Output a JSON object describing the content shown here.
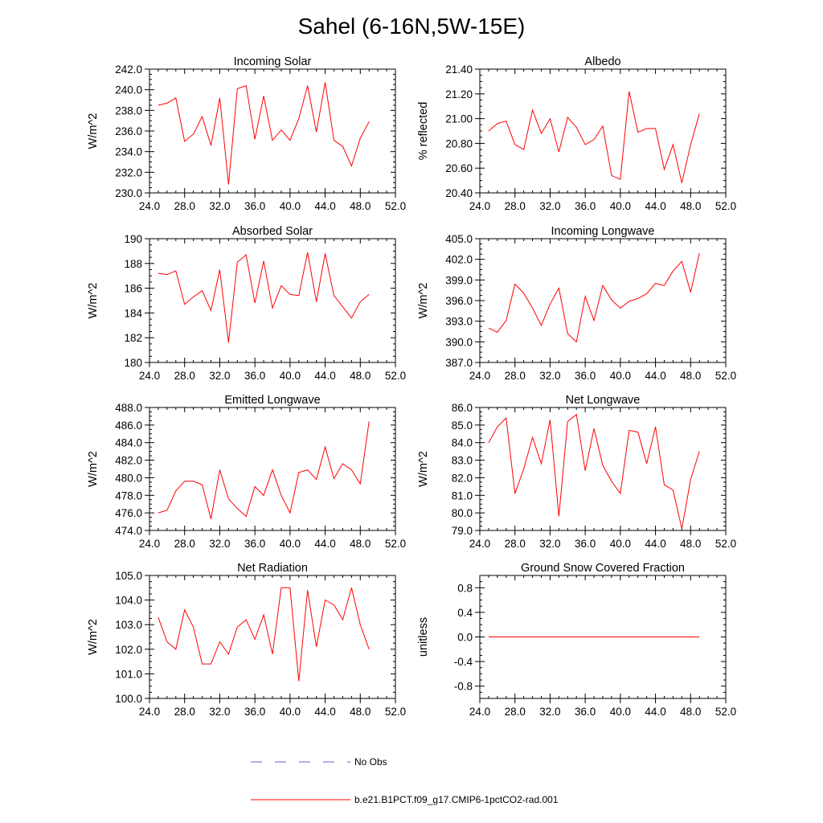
{
  "figure": {
    "title": "Sahel (6-16N,5W-15E)",
    "legend": [
      {
        "label": "No Obs",
        "color": "#5a6ad0",
        "dash": "dashed"
      },
      {
        "label": "b.e21.B1PCT.f09_g17.CMIP6-1pctCO2-rad.001",
        "color": "#ff0000",
        "dash": "solid"
      }
    ]
  },
  "chart_data": [
    {
      "type": "line",
      "title": "Incoming Solar",
      "ylabel": "W/m^2",
      "xlim": [
        24,
        52
      ],
      "ylim": [
        230,
        242
      ],
      "xticks": [
        24,
        28,
        32,
        36,
        40,
        44,
        48,
        52
      ],
      "xticklabels": [
        "24.0",
        "28.0",
        "32.0",
        "36.0",
        "40.0",
        "44.0",
        "48.0",
        "52.0"
      ],
      "yticks": [
        230,
        232,
        234,
        236,
        238,
        240,
        242
      ],
      "yticklabels": [
        "230.0",
        "232.0",
        "234.0",
        "236.0",
        "238.0",
        "240.0",
        "242.0"
      ],
      "series": [
        {
          "x": [
            25,
            26,
            27,
            28,
            29,
            30,
            31,
            32,
            33,
            34,
            35,
            36,
            37,
            38,
            39,
            40,
            41,
            42,
            43,
            44,
            45,
            46,
            47,
            48,
            49
          ],
          "y": [
            238.5,
            238.7,
            239.2,
            235.0,
            235.7,
            237.4,
            234.6,
            239.2,
            230.8,
            240.1,
            240.4,
            235.2,
            239.4,
            235.1,
            236.1,
            235.1,
            237.2,
            240.4,
            235.9,
            240.7,
            235.1,
            234.5,
            232.6,
            235.3,
            236.9
          ]
        }
      ]
    },
    {
      "type": "line",
      "title": "Albedo",
      "ylabel": "% reflected",
      "xlim": [
        24,
        52
      ],
      "ylim": [
        20.4,
        21.4
      ],
      "xticks": [
        24,
        28,
        32,
        36,
        40,
        44,
        48,
        52
      ],
      "xticklabels": [
        "24.0",
        "28.0",
        "32.0",
        "36.0",
        "40.0",
        "44.0",
        "48.0",
        "52.0"
      ],
      "yticks": [
        20.4,
        20.6,
        20.8,
        21.0,
        21.2,
        21.4
      ],
      "yticklabels": [
        "20.40",
        "20.60",
        "20.80",
        "21.00",
        "21.20",
        "21.40"
      ],
      "series": [
        {
          "x": [
            25,
            26,
            27,
            28,
            29,
            30,
            31,
            32,
            33,
            34,
            35,
            36,
            37,
            38,
            39,
            40,
            41,
            42,
            43,
            44,
            45,
            46,
            47,
            48,
            49
          ],
          "y": [
            20.9,
            20.96,
            20.98,
            20.79,
            20.75,
            21.07,
            20.88,
            21.0,
            20.73,
            21.01,
            20.93,
            20.79,
            20.83,
            20.94,
            20.54,
            20.51,
            21.22,
            20.89,
            20.92,
            20.92,
            20.59,
            20.79,
            20.48,
            20.79,
            21.04
          ]
        }
      ]
    },
    {
      "type": "line",
      "title": "Absorbed Solar",
      "ylabel": "W/m^2",
      "xlim": [
        24,
        52
      ],
      "ylim": [
        180,
        190
      ],
      "xticks": [
        24,
        28,
        32,
        36,
        40,
        44,
        48,
        52
      ],
      "xticklabels": [
        "24.0",
        "28.0",
        "32.0",
        "36.0",
        "40.0",
        "44.0",
        "48.0",
        "52.0"
      ],
      "yticks": [
        180,
        182,
        184,
        186,
        188,
        190
      ],
      "yticklabels": [
        "180",
        "182",
        "184",
        "186",
        "188",
        "190"
      ],
      "series": [
        {
          "x": [
            25,
            26,
            27,
            28,
            29,
            30,
            31,
            32,
            33,
            34,
            35,
            36,
            37,
            38,
            39,
            40,
            41,
            42,
            43,
            44,
            45,
            46,
            47,
            48,
            49
          ],
          "y": [
            187.2,
            187.1,
            187.4,
            184.7,
            185.3,
            185.8,
            184.2,
            187.5,
            181.6,
            188.1,
            188.7,
            184.8,
            188.2,
            184.4,
            186.2,
            185.5,
            185.4,
            188.9,
            184.9,
            188.8,
            185.4,
            184.5,
            183.6,
            184.9,
            185.5
          ]
        }
      ]
    },
    {
      "type": "line",
      "title": "Incoming Longwave",
      "ylabel": "W/m^2",
      "xlim": [
        24,
        52
      ],
      "ylim": [
        387,
        405
      ],
      "xticks": [
        24,
        28,
        32,
        36,
        40,
        44,
        48,
        52
      ],
      "xticklabels": [
        "24.0",
        "28.0",
        "32.0",
        "36.0",
        "40.0",
        "44.0",
        "48.0",
        "52.0"
      ],
      "yticks": [
        387,
        390,
        393,
        396,
        399,
        402,
        405
      ],
      "yticklabels": [
        "387.0",
        "390.0",
        "393.0",
        "396.0",
        "399.0",
        "402.0",
        "405.0"
      ],
      "series": [
        {
          "x": [
            25,
            26,
            27,
            28,
            29,
            30,
            31,
            32,
            33,
            34,
            35,
            36,
            37,
            38,
            39,
            40,
            41,
            42,
            43,
            44,
            45,
            46,
            47,
            48,
            49
          ],
          "y": [
            392.0,
            391.4,
            393.1,
            398.4,
            397.1,
            394.9,
            392.4,
            395.5,
            397.8,
            391.2,
            390.0,
            396.6,
            393.1,
            398.2,
            396.1,
            394.9,
            395.9,
            396.3,
            397.0,
            398.5,
            398.2,
            400.3,
            401.7,
            397.2,
            402.9
          ]
        }
      ]
    },
    {
      "type": "line",
      "title": "Emitted Longwave",
      "ylabel": "W/m^2",
      "xlim": [
        24,
        52
      ],
      "ylim": [
        474,
        488
      ],
      "xticks": [
        24,
        28,
        32,
        36,
        40,
        44,
        48,
        52
      ],
      "xticklabels": [
        "24.0",
        "28.0",
        "32.0",
        "36.0",
        "40.0",
        "44.0",
        "48.0",
        "52.0"
      ],
      "yticks": [
        474,
        476,
        478,
        480,
        482,
        484,
        486,
        488
      ],
      "yticklabels": [
        "474.0",
        "476.0",
        "478.0",
        "480.0",
        "482.0",
        "484.0",
        "486.0",
        "488.0"
      ],
      "series": [
        {
          "x": [
            25,
            26,
            27,
            28,
            29,
            30,
            31,
            32,
            33,
            34,
            35,
            36,
            37,
            38,
            39,
            40,
            41,
            42,
            43,
            44,
            45,
            46,
            47,
            48,
            49
          ],
          "y": [
            476.0,
            476.3,
            478.5,
            479.6,
            479.6,
            479.2,
            475.3,
            480.9,
            477.6,
            476.5,
            475.6,
            479.0,
            478.0,
            480.9,
            478.0,
            476.0,
            480.6,
            480.9,
            479.8,
            483.5,
            479.9,
            481.6,
            480.9,
            479.3,
            486.4
          ]
        }
      ]
    },
    {
      "type": "line",
      "title": "Net Longwave",
      "ylabel": "W/m^2",
      "xlim": [
        24,
        52
      ],
      "ylim": [
        79,
        86
      ],
      "xticks": [
        24,
        28,
        32,
        36,
        40,
        44,
        48,
        52
      ],
      "xticklabels": [
        "24.0",
        "28.0",
        "32.0",
        "36.0",
        "40.0",
        "44.0",
        "48.0",
        "52.0"
      ],
      "yticks": [
        79,
        80,
        81,
        82,
        83,
        84,
        85,
        86
      ],
      "yticklabels": [
        "79.0",
        "80.0",
        "81.0",
        "82.0",
        "83.0",
        "84.0",
        "85.0",
        "86.0"
      ],
      "series": [
        {
          "x": [
            25,
            26,
            27,
            28,
            29,
            30,
            31,
            32,
            33,
            34,
            35,
            36,
            37,
            38,
            39,
            40,
            41,
            42,
            43,
            44,
            45,
            46,
            47,
            48,
            49
          ],
          "y": [
            84.0,
            84.9,
            85.4,
            81.1,
            82.5,
            84.3,
            82.8,
            85.3,
            79.8,
            85.2,
            85.6,
            82.4,
            84.8,
            82.7,
            81.8,
            81.1,
            84.7,
            84.6,
            82.8,
            84.9,
            81.6,
            81.3,
            79.1,
            81.9,
            83.5
          ]
        }
      ]
    },
    {
      "type": "line",
      "title": "Net Radiation",
      "ylabel": "W/m^2",
      "xlim": [
        24,
        52
      ],
      "ylim": [
        100,
        105
      ],
      "xticks": [
        24,
        28,
        32,
        36,
        40,
        44,
        48,
        52
      ],
      "xticklabels": [
        "24.0",
        "28.0",
        "32.0",
        "36.0",
        "40.0",
        "44.0",
        "48.0",
        "52.0"
      ],
      "yticks": [
        100,
        101,
        102,
        103,
        104,
        105
      ],
      "yticklabels": [
        "100.0",
        "101.0",
        "102.0",
        "103.0",
        "104.0",
        "105.0"
      ],
      "series": [
        {
          "x": [
            25,
            26,
            27,
            28,
            29,
            30,
            31,
            32,
            33,
            34,
            35,
            36,
            37,
            38,
            39,
            40,
            41,
            42,
            43,
            44,
            45,
            46,
            47,
            48,
            49
          ],
          "y": [
            103.3,
            102.3,
            102.0,
            103.6,
            102.9,
            101.4,
            101.4,
            102.3,
            101.8,
            102.9,
            103.2,
            102.4,
            103.4,
            101.8,
            104.5,
            104.5,
            100.7,
            104.4,
            102.1,
            104.0,
            103.8,
            103.2,
            104.5,
            103.0,
            102.0
          ]
        }
      ]
    },
    {
      "type": "line",
      "title": "Ground Snow Covered Fraction",
      "ylabel": "unitless",
      "xlim": [
        24,
        52
      ],
      "ylim": [
        -1,
        1
      ],
      "xticks": [
        24,
        28,
        32,
        36,
        40,
        44,
        48,
        52
      ],
      "xticklabels": [
        "24.0",
        "28.0",
        "32.0",
        "36.0",
        "40.0",
        "44.0",
        "48.0",
        "52.0"
      ],
      "yticks": [
        -0.8,
        -0.4,
        0.0,
        0.4,
        0.8
      ],
      "yticklabels": [
        "-0.8",
        "-0.4",
        "0.0",
        "0.4",
        "0.8"
      ],
      "series": [
        {
          "x": [
            25,
            26,
            27,
            28,
            29,
            30,
            31,
            32,
            33,
            34,
            35,
            36,
            37,
            38,
            39,
            40,
            41,
            42,
            43,
            44,
            45,
            46,
            47,
            48,
            49
          ],
          "y": [
            0,
            0,
            0,
            0,
            0,
            0,
            0,
            0,
            0,
            0,
            0,
            0,
            0,
            0,
            0,
            0,
            0,
            0,
            0,
            0,
            0,
            0,
            0,
            0,
            0
          ]
        }
      ]
    }
  ]
}
